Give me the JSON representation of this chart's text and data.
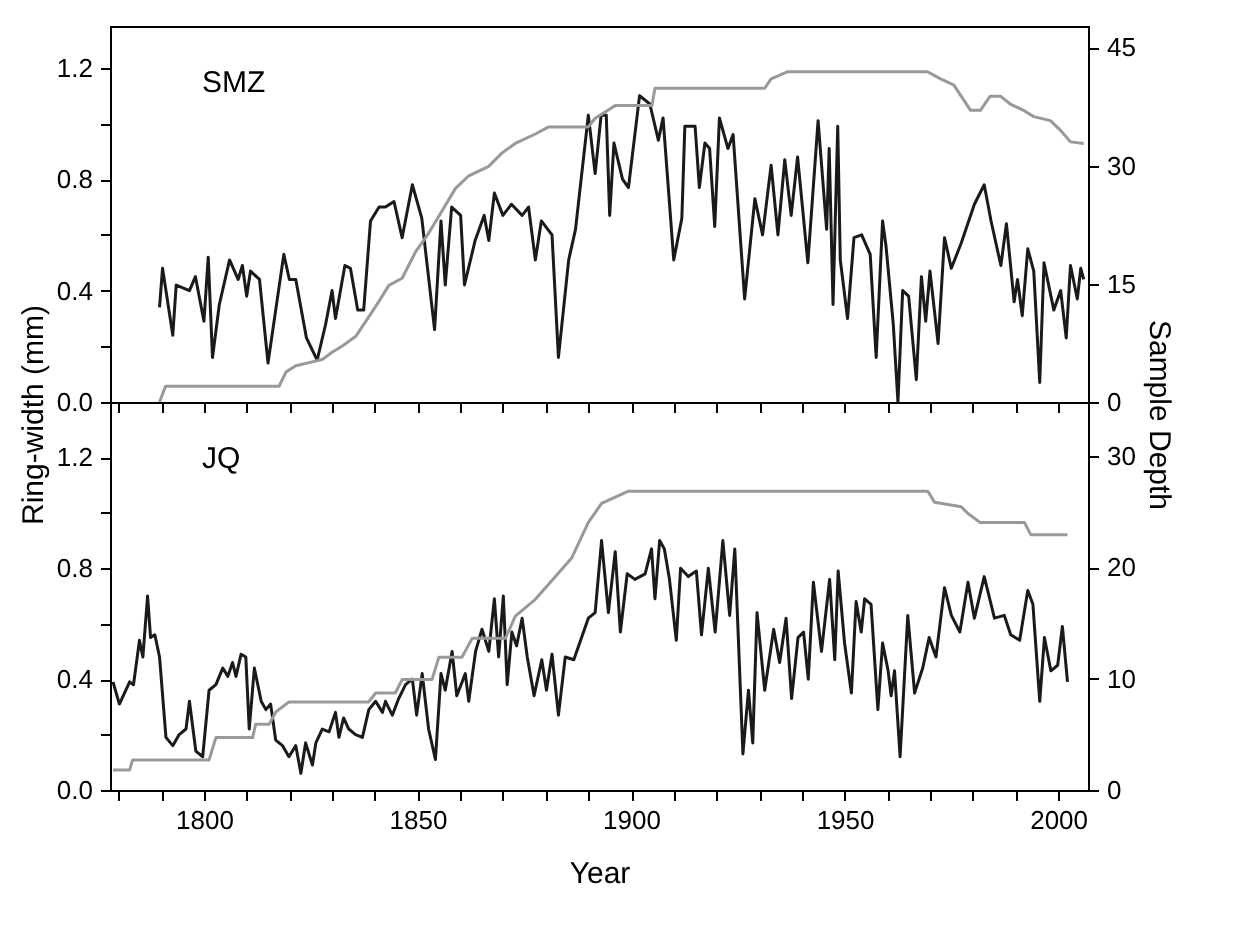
{
  "chart_data": [
    {
      "type": "line",
      "ylabel": "Ring-width (mm)",
      "y2label": "Sample Depth",
      "annotations": [
        "SMZ"
      ],
      "tick_labels": "y",
      "grid": false,
      "line_style": "solid",
      "xlim": [
        1778,
        2007
      ],
      "ylim": [
        0,
        1.35
      ],
      "y2lim": [
        0,
        47.7
      ],
      "xticks": [
        {
          "value": 1780,
          "label": null
        },
        {
          "value": 1790,
          "label": null
        },
        {
          "value": 1800,
          "label": null
        },
        {
          "value": 1810,
          "label": null
        },
        {
          "value": 1820,
          "label": null
        },
        {
          "value": 1830,
          "label": null
        },
        {
          "value": 1840,
          "label": null
        },
        {
          "value": 1850,
          "label": null
        },
        {
          "value": 1860,
          "label": null
        },
        {
          "value": 1870,
          "label": null
        },
        {
          "value": 1880,
          "label": null
        },
        {
          "value": 1890,
          "label": null
        },
        {
          "value": 1900,
          "label": null
        },
        {
          "value": 1910,
          "label": null
        },
        {
          "value": 1920,
          "label": null
        },
        {
          "value": 1930,
          "label": null
        },
        {
          "value": 1940,
          "label": null
        },
        {
          "value": 1950,
          "label": null
        },
        {
          "value": 1960,
          "label": null
        },
        {
          "value": 1970,
          "label": null
        },
        {
          "value": 1980,
          "label": null
        },
        {
          "value": 1990,
          "label": null
        },
        {
          "value": 2000,
          "label": null
        }
      ],
      "yticks": [
        {
          "value": 0,
          "label": "0.0"
        },
        {
          "value": 0.2,
          "label": null
        },
        {
          "value": 0.4,
          "label": "0.4"
        },
        {
          "value": 0.6,
          "label": null
        },
        {
          "value": 0.8,
          "label": "0.8"
        },
        {
          "value": 1.0,
          "label": null
        },
        {
          "value": 1.2,
          "label": "1.2"
        }
      ],
      "y2ticks": [
        0,
        15,
        30,
        45
      ],
      "series": [
        {
          "color": "#1a1a1a",
          "x": [
            1789.6,
            1790.3,
            1792.7,
            1793.5,
            1796.6,
            1798,
            1800,
            1801,
            1802,
            1803.6,
            1806,
            1808,
            1809,
            1810,
            1810.9,
            1813,
            1815,
            1818.7,
            1820,
            1821.5,
            1824,
            1826.5,
            1828.5,
            1830,
            1830.8,
            1833,
            1834.3,
            1836,
            1837.4,
            1839,
            1841,
            1842.5,
            1844.5,
            1846.4,
            1848.8,
            1851,
            1854,
            1855.5,
            1856.5,
            1858,
            1860.1,
            1861,
            1863.5,
            1865.6,
            1866.7,
            1868,
            1870,
            1872,
            1874.5,
            1876,
            1877.6,
            1879,
            1881.5,
            1883,
            1885.4,
            1887,
            1890,
            1891.6,
            1893,
            1894.2,
            1895,
            1896,
            1898,
            1899.4,
            1902,
            1904.4,
            1906.4,
            1907.5,
            1910,
            1911.9,
            1912.6,
            1915,
            1916,
            1917.3,
            1918.4,
            1919.6,
            1920.7,
            1922.7,
            1923.9,
            1926.6,
            1929,
            1930.8,
            1932.8,
            1934.4,
            1936,
            1937.5,
            1939,
            1941.4,
            1943.8,
            1945.8,
            1946.4,
            1947.3,
            1948.4,
            1949,
            1950.7,
            1952.2,
            1954,
            1956,
            1957.4,
            1958.9,
            1959.7,
            1961.4,
            1962.5,
            1963.6,
            1965,
            1966.8,
            1968,
            1969,
            1970,
            1971.9,
            1973.4,
            1975,
            1977.3,
            1980.4,
            1982.7,
            1984.3,
            1986.6,
            1987.9,
            1989.7,
            1990.5,
            1991.6,
            1992.9,
            1994.3,
            1995.7,
            1996.7,
            1999,
            2000.6,
            2001.9,
            2002.9,
            2004.5,
            2005.3,
            2006
          ],
          "values": [
            0.34,
            0.48,
            0.24,
            0.42,
            0.4,
            0.45,
            0.29,
            0.52,
            0.16,
            0.35,
            0.51,
            0.44,
            0.49,
            0.38,
            0.47,
            0.44,
            0.14,
            0.53,
            0.44,
            0.44,
            0.23,
            0.15,
            0.28,
            0.4,
            0.3,
            0.49,
            0.48,
            0.33,
            0.33,
            0.65,
            0.7,
            0.7,
            0.72,
            0.59,
            0.78,
            0.66,
            0.26,
            0.65,
            0.42,
            0.7,
            0.67,
            0.42,
            0.58,
            0.67,
            0.58,
            0.75,
            0.67,
            0.71,
            0.67,
            0.7,
            0.51,
            0.65,
            0.6,
            0.16,
            0.51,
            0.62,
            1.03,
            0.82,
            1.03,
            1.03,
            0.67,
            0.93,
            0.8,
            0.77,
            1.1,
            1.07,
            0.94,
            1.02,
            0.51,
            0.66,
            0.99,
            0.99,
            0.77,
            0.93,
            0.91,
            0.63,
            1.02,
            0.91,
            0.96,
            0.37,
            0.73,
            0.6,
            0.85,
            0.6,
            0.87,
            0.67,
            0.88,
            0.5,
            1.01,
            0.62,
            0.91,
            0.35,
            0.99,
            0.51,
            0.3,
            0.59,
            0.6,
            0.53,
            0.16,
            0.65,
            0.56,
            0.28,
            0.0,
            0.4,
            0.38,
            0.08,
            0.45,
            0.29,
            0.47,
            0.21,
            0.59,
            0.48,
            0.57,
            0.71,
            0.78,
            0.65,
            0.49,
            0.64,
            0.36,
            0.44,
            0.31,
            0.55,
            0.47,
            0.07,
            0.5,
            0.33,
            0.4,
            0.23,
            0.49,
            0.37,
            0.48,
            0.44
          ]
        },
        {
          "color": "#999999",
          "axis": "y2",
          "x": [
            1789.6,
            1791,
            1817.6,
            1819.2,
            1821.5,
            1824.6,
            1827.7,
            1830,
            1832.4,
            1835.5,
            1838.6,
            1841,
            1843.3,
            1846.4,
            1849.5,
            1852.6,
            1855.8,
            1858.9,
            1862,
            1866.7,
            1869.8,
            1872.9,
            1877.6,
            1880.7,
            1890,
            1891.6,
            1896.3,
            1904.9,
            1905.6,
            1931.3,
            1932.8,
            1936.7,
            1969.4,
            1972.5,
            1975.6,
            1979.5,
            1981.8,
            1984.1,
            1986.5,
            1988.8,
            1991.9,
            1994.3,
            1998.2,
            2000.5,
            2002.9,
            2006
          ],
          "values": [
            0,
            2,
            2,
            3.8,
            4.6,
            5,
            5.4,
            6.3,
            7.1,
            8.3,
            10.8,
            12.8,
            14.8,
            15.7,
            19,
            21.4,
            24.3,
            27.1,
            28.7,
            29.9,
            31.6,
            32.8,
            34,
            34.9,
            34.9,
            36,
            37.6,
            37.6,
            39.8,
            39.8,
            41,
            41.9,
            41.9,
            41,
            40.2,
            37,
            37,
            38.8,
            38.8,
            37.8,
            37,
            36.2,
            35.7,
            34.5,
            33,
            32.8
          ]
        }
      ]
    },
    {
      "type": "line",
      "xlabel": "Year",
      "annotations": [
        "JQ"
      ],
      "grid": false,
      "line_style": "solid",
      "xlim": [
        1778,
        2007
      ],
      "ylim": [
        0,
        1.4
      ],
      "y2lim": [
        0,
        34.8
      ],
      "xticks": [
        {
          "value": 1780,
          "label": null
        },
        {
          "value": 1790,
          "label": null
        },
        1800,
        {
          "value": 1810,
          "label": null
        },
        {
          "value": 1820,
          "label": null
        },
        {
          "value": 1830,
          "label": null
        },
        {
          "value": 1840,
          "label": null
        },
        1850,
        {
          "value": 1860,
          "label": null
        },
        {
          "value": 1870,
          "label": null
        },
        {
          "value": 1880,
          "label": null
        },
        {
          "value": 1890,
          "label": null
        },
        1900,
        {
          "value": 1910,
          "label": null
        },
        {
          "value": 1920,
          "label": null
        },
        {
          "value": 1930,
          "label": null
        },
        {
          "value": 1940,
          "label": null
        },
        1950,
        {
          "value": 1960,
          "label": null
        },
        {
          "value": 1970,
          "label": null
        },
        {
          "value": 1980,
          "label": null
        },
        {
          "value": 1990,
          "label": null
        },
        2000
      ],
      "yticks": [
        {
          "value": 0,
          "label": "0.0"
        },
        {
          "value": 0.2,
          "label": null
        },
        {
          "value": 0.4,
          "label": "0.4"
        },
        {
          "value": 0.6,
          "label": null
        },
        {
          "value": 0.8,
          "label": "0.8"
        },
        {
          "value": 1.0,
          "label": null
        },
        {
          "value": 1.2,
          "label": "1.2"
        }
      ],
      "y2ticks": [
        0,
        10,
        20,
        30
      ],
      "series": [
        {
          "color": "#1a1a1a",
          "x": [
            1778.7,
            1780.2,
            1782.6,
            1783.5,
            1784.9,
            1785.7,
            1786.8,
            1787.5,
            1788.5,
            1789.6,
            1791.1,
            1792.7,
            1794.2,
            1795.8,
            1796.6,
            1798.1,
            1799.7,
            1801.2,
            1802.8,
            1804.4,
            1805.6,
            1806.7,
            1807.5,
            1808.7,
            1809.8,
            1810.6,
            1811.8,
            1813.4,
            1814.5,
            1815.6,
            1816.8,
            1818.4,
            1819.9,
            1821.5,
            1822.7,
            1823.8,
            1825.4,
            1826.2,
            1827.7,
            1829.3,
            1830.8,
            1831.6,
            1832.7,
            1833.9,
            1835.5,
            1837.1,
            1838.6,
            1840.2,
            1841.8,
            1842.5,
            1844.1,
            1845.6,
            1847.2,
            1848.8,
            1849.8,
            1851.1,
            1852.6,
            1854.2,
            1855.5,
            1856.5,
            1858.1,
            1859.2,
            1861.2,
            1862,
            1863.6,
            1865.1,
            1866.7,
            1868,
            1869,
            1870.1,
            1871,
            1872.1,
            1873.2,
            1874.5,
            1875.7,
            1877.3,
            1879.1,
            1880.2,
            1881.5,
            1883,
            1884.6,
            1886.6,
            1890,
            1891.6,
            1893.1,
            1894.7,
            1896.3,
            1897.5,
            1899.1,
            1900.9,
            1903.3,
            1904.8,
            1905.6,
            1906.7,
            1907.8,
            1909,
            1910.6,
            1911.6,
            1913.4,
            1915.3,
            1916.5,
            1918.1,
            1919.7,
            1921.5,
            1923.1,
            1924.3,
            1926.2,
            1927.5,
            1928.5,
            1929.5,
            1931.3,
            1933.4,
            1934.8,
            1936.3,
            1937.6,
            1939.1,
            1940.4,
            1941.5,
            1942.7,
            1944.6,
            1946.5,
            1947.7,
            1948.5,
            1950,
            1951.6,
            1952.7,
            1953.9,
            1954.7,
            1956.2,
            1957.8,
            1958.9,
            1960.2,
            1960.9,
            1961.7,
            1963,
            1964.8,
            1966.4,
            1968.3,
            1969.8,
            1971.4,
            1973.4,
            1975,
            1977,
            1978.9,
            1980.4,
            1982.7,
            1985.1,
            1987.4,
            1988.9,
            1991,
            1992.9,
            1994.1,
            1995.7,
            1996.8,
            1998.3,
            1999.9,
            2001,
            2002.2
          ],
          "values": [
            0.39,
            0.31,
            0.39,
            0.38,
            0.54,
            0.48,
            0.7,
            0.55,
            0.56,
            0.48,
            0.19,
            0.16,
            0.2,
            0.22,
            0.32,
            0.14,
            0.12,
            0.36,
            0.38,
            0.44,
            0.41,
            0.46,
            0.41,
            0.49,
            0.48,
            0.22,
            0.44,
            0.32,
            0.29,
            0.31,
            0.18,
            0.16,
            0.12,
            0.16,
            0.06,
            0.17,
            0.09,
            0.17,
            0.22,
            0.21,
            0.28,
            0.19,
            0.26,
            0.22,
            0.2,
            0.19,
            0.29,
            0.32,
            0.28,
            0.32,
            0.27,
            0.33,
            0.38,
            0.4,
            0.27,
            0.42,
            0.22,
            0.11,
            0.42,
            0.36,
            0.5,
            0.34,
            0.42,
            0.32,
            0.5,
            0.58,
            0.5,
            0.69,
            0.48,
            0.7,
            0.38,
            0.57,
            0.52,
            0.62,
            0.48,
            0.34,
            0.47,
            0.36,
            0.49,
            0.27,
            0.48,
            0.47,
            0.62,
            0.64,
            0.9,
            0.64,
            0.86,
            0.57,
            0.78,
            0.76,
            0.78,
            0.87,
            0.69,
            0.9,
            0.87,
            0.76,
            0.54,
            0.8,
            0.77,
            0.79,
            0.56,
            0.8,
            0.57,
            0.9,
            0.63,
            0.87,
            0.13,
            0.36,
            0.17,
            0.64,
            0.36,
            0.58,
            0.46,
            0.62,
            0.33,
            0.55,
            0.57,
            0.4,
            0.75,
            0.5,
            0.76,
            0.47,
            0.79,
            0.53,
            0.35,
            0.68,
            0.57,
            0.69,
            0.67,
            0.29,
            0.53,
            0.43,
            0.34,
            0.43,
            0.12,
            0.63,
            0.35,
            0.44,
            0.55,
            0.48,
            0.73,
            0.63,
            0.57,
            0.75,
            0.62,
            0.77,
            0.62,
            0.63,
            0.56,
            0.54,
            0.72,
            0.67,
            0.32,
            0.55,
            0.43,
            0.45,
            0.59,
            0.39
          ]
        },
        {
          "color": "#999999",
          "axis": "y2",
          "x": [
            1778.7,
            1782.6,
            1783.3,
            1801.2,
            1802.8,
            1811.4,
            1812.1,
            1815.3,
            1816.8,
            1819.9,
            1838.6,
            1840.2,
            1844.8,
            1846.4,
            1853.4,
            1855,
            1860.4,
            1862.8,
            1870.6,
            1872.9,
            1877.6,
            1882.2,
            1886.1,
            1890,
            1893.1,
            1899.4,
            1900.2,
            1969.5,
            1971.1,
            1977.3,
            1978.9,
            1981.7,
            1992.1,
            1993.6,
            2002.2
          ],
          "values": [
            1.8,
            1.8,
            2.7,
            2.7,
            4.7,
            4.7,
            5.9,
            5.9,
            7,
            7.9,
            7.9,
            8.7,
            8.7,
            9.9,
            9.9,
            11.9,
            11.9,
            13.6,
            13.6,
            15.6,
            17.1,
            19.1,
            20.8,
            24,
            25.7,
            26.8,
            26.8,
            26.8,
            25.8,
            25.4,
            24.8,
            24,
            24,
            22.9,
            22.9
          ]
        }
      ]
    }
  ]
}
